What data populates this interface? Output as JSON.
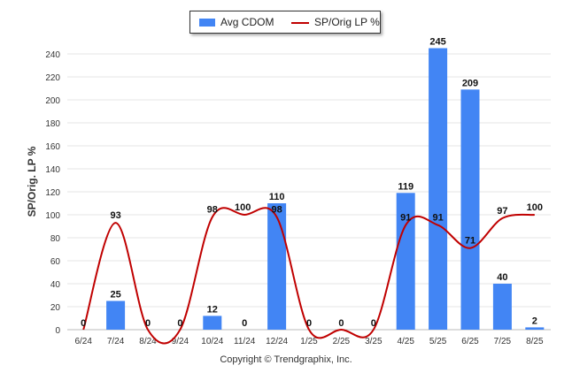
{
  "chart_data": {
    "type": "bar",
    "categories": [
      "6/24",
      "7/24",
      "8/24",
      "9/24",
      "10/24",
      "11/24",
      "12/24",
      "1/25",
      "2/25",
      "3/25",
      "4/25",
      "5/25",
      "6/25",
      "7/25",
      "8/25"
    ],
    "series": [
      {
        "name": "Avg CDOM",
        "kind": "bar",
        "color": "#4285f4",
        "values": [
          0,
          25,
          0,
          0,
          12,
          0,
          110,
          0,
          0,
          0,
          119,
          245,
          209,
          40,
          2
        ],
        "labels": [
          "0",
          "25",
          "0",
          "0",
          "12",
          "0",
          "110",
          "0",
          "0",
          "0",
          "119",
          "245",
          "209",
          "40",
          "2"
        ]
      },
      {
        "name": "SP/Orig LP %",
        "kind": "line",
        "color": "#c00000",
        "values": [
          0,
          93,
          0,
          0,
          98,
          100,
          98,
          0,
          0,
          0,
          91,
          91,
          71,
          97,
          100
        ],
        "labels": [
          "",
          "93",
          "",
          "",
          "98",
          "100",
          "98",
          "",
          "",
          "",
          "91",
          "91",
          "71",
          "97",
          "100"
        ]
      }
    ],
    "ylabel": "SP/Orig. LP %",
    "ylim": [
      0,
      250
    ],
    "yticks": [
      0,
      20,
      40,
      60,
      80,
      100,
      120,
      140,
      160,
      180,
      200,
      220,
      240
    ],
    "grid": true,
    "legend_position": "top-center"
  },
  "footer": "Copyright © Trendgraphix, Inc."
}
